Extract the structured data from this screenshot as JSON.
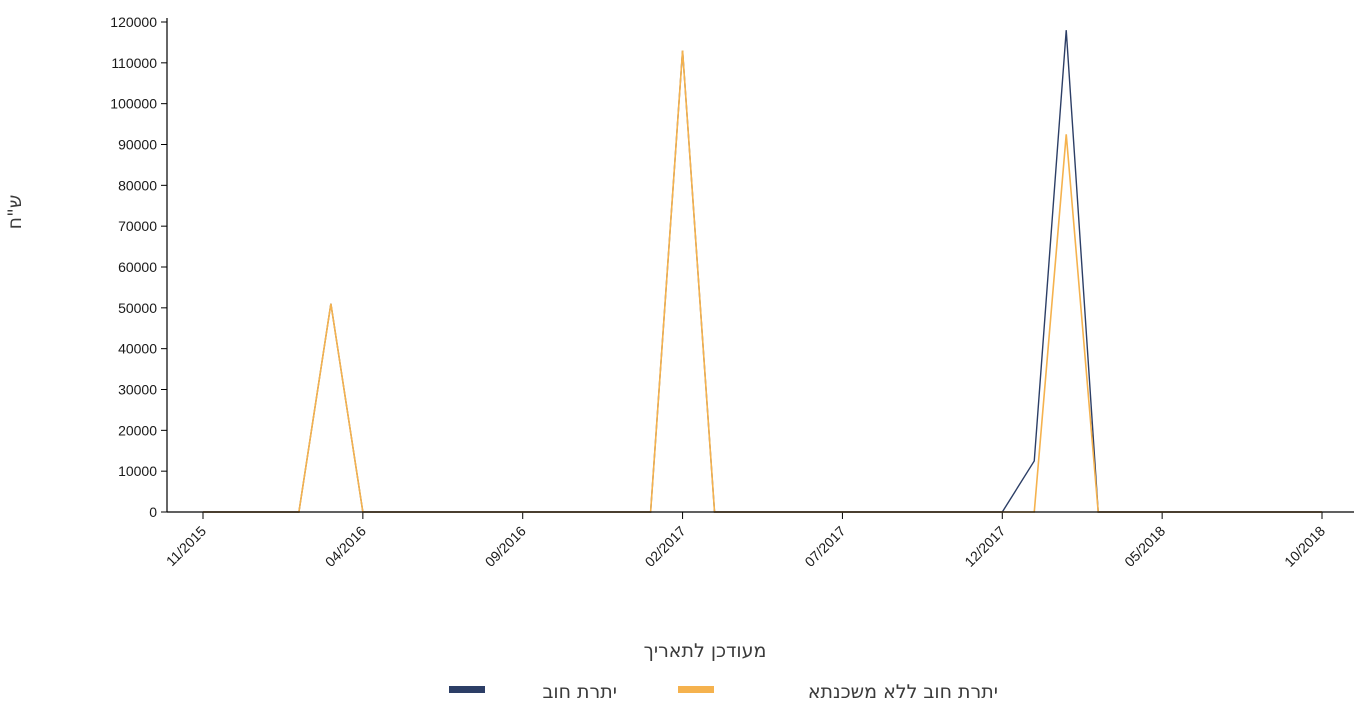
{
  "chart_data": {
    "type": "line",
    "xlabel": "מעודכן לתאריך",
    "ylabel": "ש\"ח",
    "ylim": [
      0,
      120000
    ],
    "y_ticks": [
      0,
      10000,
      20000,
      30000,
      40000,
      50000,
      60000,
      70000,
      80000,
      90000,
      100000,
      110000,
      120000
    ],
    "x_range": [
      "2015-11",
      "2018-10"
    ],
    "x_ticks": [
      "11/2015",
      "04/2016",
      "09/2016",
      "02/2017",
      "07/2017",
      "12/2017",
      "05/2018",
      "10/2018"
    ],
    "grid": false,
    "legend_position": "bottom",
    "series": [
      {
        "name": "יתרת חוב",
        "color": "#2c3e66",
        "points": [
          [
            "2015-11",
            0
          ],
          [
            "2016-02",
            0
          ],
          [
            "2016-03",
            51000
          ],
          [
            "2016-04",
            0
          ],
          [
            "2017-01",
            0
          ],
          [
            "2017-02",
            113000
          ],
          [
            "2017-03",
            0
          ],
          [
            "2017-12",
            0
          ],
          [
            "2018-01",
            12500
          ],
          [
            "2018-02",
            118000
          ],
          [
            "2018-03",
            0
          ],
          [
            "2018-10",
            0
          ]
        ]
      },
      {
        "name": "יתרת חוב ללא משכנתא",
        "color": "#f5b24e",
        "points": [
          [
            "2015-11",
            0
          ],
          [
            "2016-02",
            0
          ],
          [
            "2016-03",
            51000
          ],
          [
            "2016-04",
            0
          ],
          [
            "2017-01",
            0
          ],
          [
            "2017-02",
            113000
          ],
          [
            "2017-03",
            0
          ],
          [
            "2018-01",
            0
          ],
          [
            "2018-02",
            92500
          ],
          [
            "2018-03",
            0
          ],
          [
            "2018-10",
            0
          ]
        ]
      }
    ]
  }
}
